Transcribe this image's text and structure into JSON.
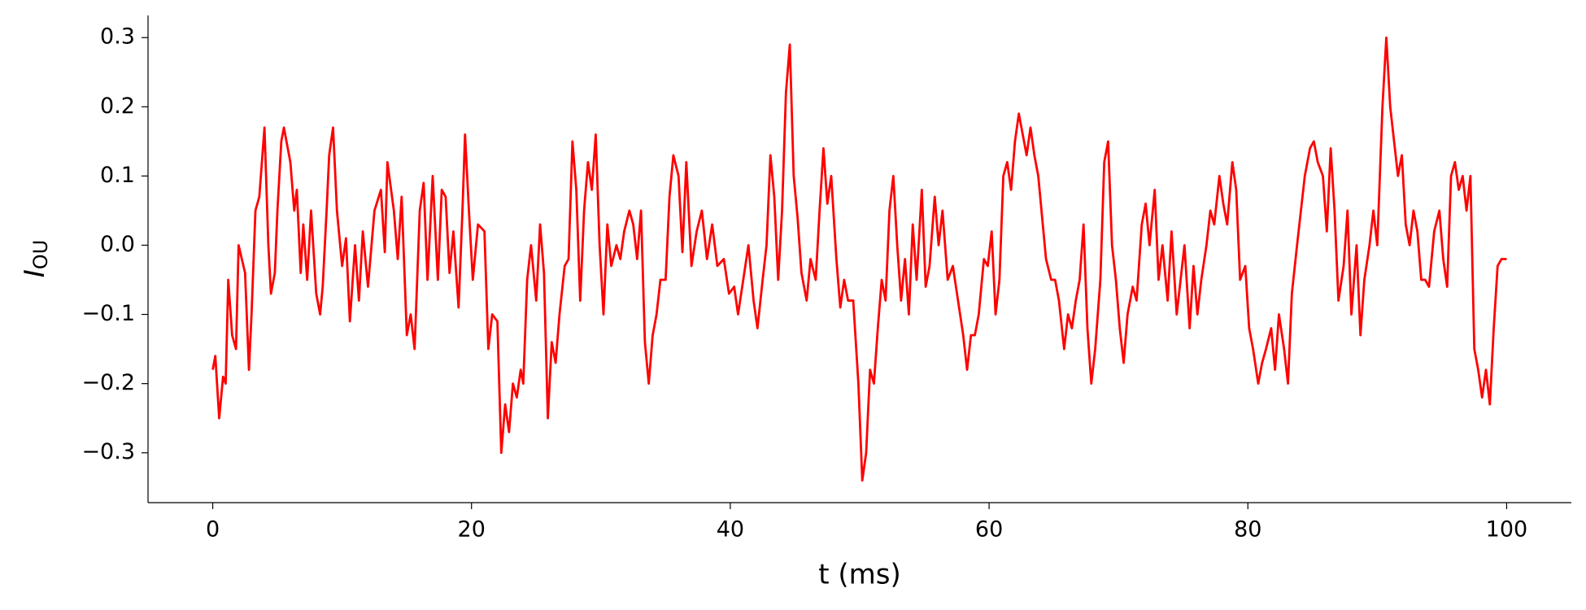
{
  "chart_data": {
    "type": "line",
    "xlabel": "t (ms)",
    "ylabel": "I",
    "ylabel_subscript": "OU",
    "xlim": [
      -5,
      105
    ],
    "xticks": [
      0,
      20,
      40,
      60,
      80,
      100
    ],
    "ylim": [
      -0.372,
      0.332
    ],
    "yticks": [
      {
        "value": -0.3,
        "label": "−0.3"
      },
      {
        "value": -0.2,
        "label": "−0.2"
      },
      {
        "value": -0.1,
        "label": "−0.1"
      },
      {
        "value": 0,
        "label": "0.0"
      },
      0.1,
      0.2,
      0.3
    ],
    "grid": false,
    "x": [
      0,
      0.2,
      0.5,
      0.8,
      1.0,
      1.2,
      1.5,
      1.8,
      2.0,
      2.5,
      2.8,
      3.0,
      3.3,
      3.6,
      4.0,
      4.3,
      4.5,
      4.8,
      5.0,
      5.3,
      5.5,
      6.0,
      6.3,
      6.5,
      6.8,
      7.0,
      7.3,
      7.6,
      8.0,
      8.3,
      8.5,
      8.8,
      9.0,
      9.3,
      9.6,
      10.0,
      10.3,
      10.6,
      11.0,
      11.3,
      11.6,
      12.0,
      12.5,
      13.0,
      13.3,
      13.5,
      14.0,
      14.3,
      14.6,
      15.0,
      15.3,
      15.6,
      16.0,
      16.3,
      16.6,
      17.0,
      17.4,
      17.7,
      18.0,
      18.3,
      18.6,
      19.0,
      19.3,
      19.5,
      19.8,
      20.1,
      20.5,
      21.0,
      21.3,
      21.6,
      22.0,
      22.3,
      22.6,
      22.9,
      23.2,
      23.5,
      23.8,
      24.0,
      24.3,
      24.6,
      25.0,
      25.3,
      25.6,
      25.9,
      26.2,
      26.5,
      26.8,
      27.2,
      27.5,
      27.8,
      28.1,
      28.4,
      28.7,
      29.0,
      29.3,
      29.6,
      29.9,
      30.2,
      30.5,
      30.8,
      31.2,
      31.5,
      31.8,
      32.2,
      32.5,
      32.8,
      33.1,
      33.4,
      33.7,
      34.0,
      34.3,
      34.6,
      35.0,
      35.3,
      35.6,
      36.0,
      36.3,
      36.6,
      37.0,
      37.4,
      37.8,
      38.2,
      38.6,
      39.0,
      39.5,
      39.9,
      40.3,
      40.6,
      41.0,
      41.4,
      41.8,
      42.1,
      42.5,
      42.8,
      43.1,
      43.4,
      43.7,
      44.0,
      44.3,
      44.6,
      44.9,
      45.2,
      45.5,
      45.9,
      46.2,
      46.6,
      46.9,
      47.2,
      47.5,
      47.8,
      48.2,
      48.5,
      48.8,
      49.1,
      49.5,
      49.9,
      50.2,
      50.5,
      50.8,
      51.1,
      51.4,
      51.7,
      52.0,
      52.3,
      52.6,
      52.9,
      53.2,
      53.5,
      53.8,
      54.1,
      54.4,
      54.8,
      55.1,
      55.4,
      55.8,
      56.1,
      56.4,
      56.8,
      57.2,
      57.6,
      58.0,
      58.3,
      58.6,
      58.9,
      59.2,
      59.6,
      59.9,
      60.2,
      60.5,
      60.8,
      61.1,
      61.4,
      61.7,
      62.0,
      62.3,
      62.6,
      62.9,
      63.2,
      63.5,
      63.8,
      64.1,
      64.4,
      64.8,
      65.1,
      65.4,
      65.8,
      66.1,
      66.4,
      66.7,
      67.0,
      67.3,
      67.6,
      67.9,
      68.2,
      68.6,
      68.9,
      69.2,
      69.5,
      69.8,
      70.1,
      70.4,
      70.7,
      71.1,
      71.4,
      71.8,
      72.1,
      72.4,
      72.8,
      73.1,
      73.4,
      73.8,
      74.1,
      74.5,
      74.8,
      75.1,
      75.5,
      75.8,
      76.1,
      76.4,
      76.8,
      77.1,
      77.4,
      77.8,
      78.1,
      78.4,
      78.8,
      79.1,
      79.4,
      79.8,
      80.1,
      80.4,
      80.8,
      81.1,
      81.4,
      81.8,
      82.1,
      82.4,
      82.8,
      83.1,
      83.4,
      83.8,
      84.1,
      84.4,
      84.8,
      85.1,
      85.4,
      85.8,
      86.1,
      86.4,
      86.7,
      87.0,
      87.4,
      87.7,
      88.0,
      88.4,
      88.7,
      89.0,
      89.4,
      89.7,
      90.0,
      90.4,
      90.7,
      91.0,
      91.3,
      91.6,
      91.9,
      92.2,
      92.5,
      92.8,
      93.1,
      93.4,
      93.7,
      94.0,
      94.4,
      94.8,
      95.1,
      95.4,
      95.7,
      96.0,
      96.3,
      96.6,
      96.9,
      97.2,
      97.5,
      97.8,
      98.1,
      98.4,
      98.7,
      99.0,
      99.3,
      99.6,
      100
    ],
    "series": [
      {
        "color": "#ff0000",
        "values": [
          -0.18,
          -0.16,
          -0.25,
          -0.19,
          -0.2,
          -0.05,
          -0.13,
          -0.15,
          0.0,
          -0.04,
          -0.18,
          -0.1,
          0.05,
          0.07,
          0.17,
          0.0,
          -0.07,
          -0.04,
          0.05,
          0.15,
          0.17,
          0.12,
          0.05,
          0.08,
          -0.04,
          0.03,
          -0.05,
          0.05,
          -0.07,
          -0.1,
          -0.06,
          0.05,
          0.13,
          0.17,
          0.05,
          -0.03,
          0.01,
          -0.11,
          0.0,
          -0.08,
          0.02,
          -0.06,
          0.05,
          0.08,
          -0.01,
          0.12,
          0.05,
          -0.02,
          0.07,
          -0.13,
          -0.1,
          -0.15,
          0.05,
          0.09,
          -0.05,
          0.1,
          -0.05,
          0.08,
          0.07,
          -0.04,
          0.02,
          -0.09,
          0.05,
          0.16,
          0.05,
          -0.05,
          0.03,
          0.02,
          -0.15,
          -0.1,
          -0.11,
          -0.3,
          -0.23,
          -0.27,
          -0.2,
          -0.22,
          -0.18,
          -0.2,
          -0.05,
          0.0,
          -0.08,
          0.03,
          -0.04,
          -0.25,
          -0.14,
          -0.17,
          -0.1,
          -0.03,
          -0.02,
          0.15,
          0.08,
          -0.08,
          0.05,
          0.12,
          0.08,
          0.16,
          0.0,
          -0.1,
          0.03,
          -0.03,
          0.0,
          -0.02,
          0.02,
          0.05,
          0.03,
          -0.02,
          0.05,
          -0.14,
          -0.2,
          -0.13,
          -0.1,
          -0.05,
          -0.05,
          0.07,
          0.13,
          0.1,
          -0.01,
          0.12,
          -0.03,
          0.02,
          0.05,
          -0.02,
          0.03,
          -0.03,
          -0.02,
          -0.07,
          -0.06,
          -0.1,
          -0.05,
          0.0,
          -0.08,
          -0.12,
          -0.05,
          0.0,
          0.13,
          0.07,
          -0.05,
          0.05,
          0.22,
          0.29,
          0.1,
          0.04,
          -0.04,
          -0.08,
          -0.02,
          -0.05,
          0.05,
          0.14,
          0.06,
          0.1,
          -0.02,
          -0.09,
          -0.05,
          -0.08,
          -0.08,
          -0.2,
          -0.34,
          -0.3,
          -0.18,
          -0.2,
          -0.12,
          -0.05,
          -0.08,
          0.05,
          0.1,
          0.0,
          -0.08,
          -0.02,
          -0.1,
          0.03,
          -0.05,
          0.08,
          -0.06,
          -0.03,
          0.07,
          0.0,
          0.05,
          -0.05,
          -0.03,
          -0.08,
          -0.13,
          -0.18,
          -0.13,
          -0.13,
          -0.1,
          -0.02,
          -0.03,
          0.02,
          -0.1,
          -0.05,
          0.1,
          0.12,
          0.08,
          0.15,
          0.19,
          0.16,
          0.13,
          0.17,
          0.13,
          0.1,
          0.04,
          -0.02,
          -0.05,
          -0.05,
          -0.08,
          -0.15,
          -0.1,
          -0.12,
          -0.08,
          -0.05,
          0.03,
          -0.12,
          -0.2,
          -0.15,
          -0.05,
          0.12,
          0.15,
          0.0,
          -0.05,
          -0.12,
          -0.17,
          -0.1,
          -0.06,
          -0.08,
          0.03,
          0.06,
          0.0,
          0.08,
          -0.05,
          0.0,
          -0.08,
          0.02,
          -0.1,
          -0.05,
          0.0,
          -0.12,
          -0.03,
          -0.1,
          -0.05,
          0.0,
          0.05,
          0.03,
          0.1,
          0.06,
          0.03,
          0.12,
          0.08,
          -0.05,
          -0.03,
          -0.12,
          -0.15,
          -0.2,
          -0.17,
          -0.15,
          -0.12,
          -0.18,
          -0.1,
          -0.15,
          -0.2,
          -0.07,
          0.0,
          0.05,
          0.1,
          0.14,
          0.15,
          0.12,
          0.1,
          0.02,
          0.14,
          0.05,
          -0.08,
          -0.03,
          0.05,
          -0.1,
          0.0,
          -0.13,
          -0.05,
          0.0,
          0.05,
          0.0,
          0.2,
          0.3,
          0.2,
          0.15,
          0.1,
          0.13,
          0.03,
          0.0,
          0.05,
          0.02,
          -0.05,
          -0.05,
          -0.06,
          0.02,
          0.05,
          -0.02,
          -0.06,
          0.1,
          0.12,
          0.08,
          0.1,
          0.05,
          0.1,
          -0.15,
          -0.18,
          -0.22,
          -0.18,
          -0.23,
          -0.12,
          -0.03,
          -0.02,
          -0.02
        ]
      }
    ]
  }
}
